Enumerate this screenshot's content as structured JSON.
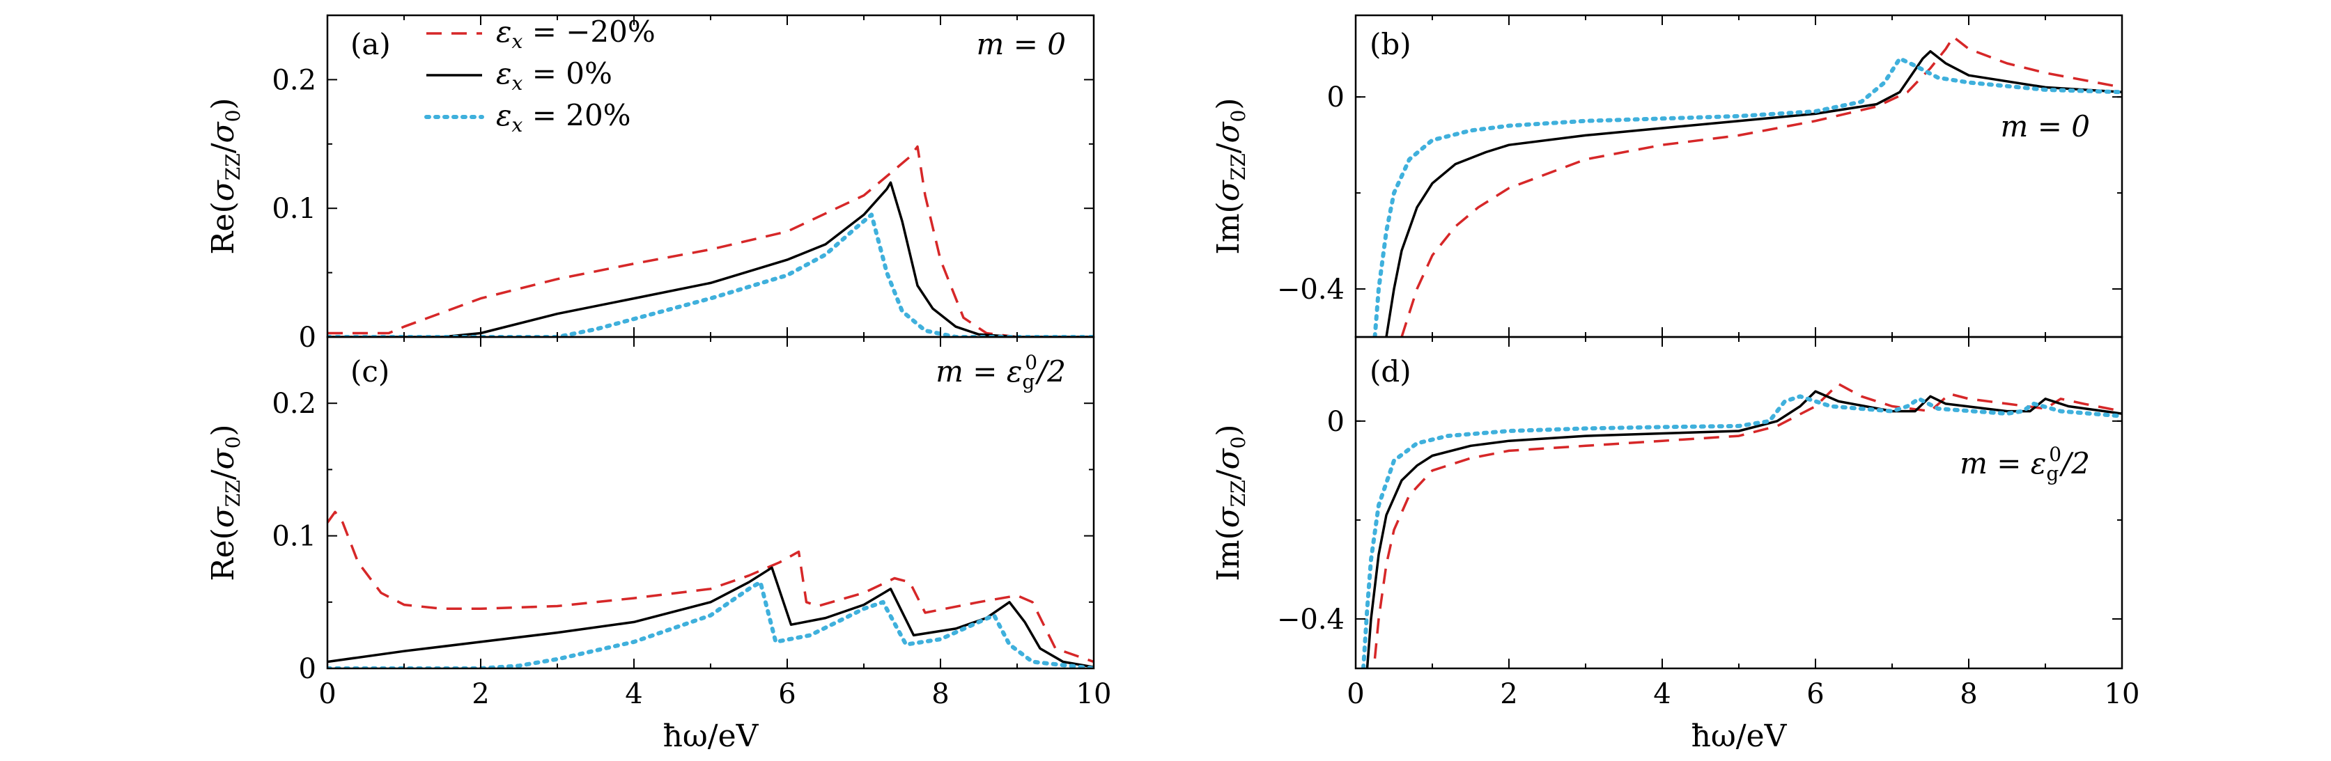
{
  "styles": {
    "dashed": {
      "color": "#d62728",
      "dash": "22,14",
      "width": 3.5
    },
    "solid": {
      "color": "#000000",
      "dash": "",
      "width": 3.5
    },
    "dotted": {
      "color": "#3fb0dc",
      "dash": "4,9",
      "width": 6
    }
  },
  "legend": [
    {
      "label": "εx = −20%",
      "style": "dashed"
    },
    {
      "label": "εx = 0%",
      "style": "solid"
    },
    {
      "label": "εx = 20%",
      "style": "dotted"
    }
  ],
  "xlabel": "ħω/eV",
  "chart_data": [
    {
      "id": "a",
      "type": "line",
      "panel_label": "(a)",
      "annotation": "m = 0",
      "ylabel": "Re(σZZ/σ0)",
      "xlim": [
        0,
        10
      ],
      "ylim": [
        0,
        0.25
      ],
      "xticks": [
        0,
        2,
        4,
        6,
        8,
        10
      ],
      "yticks": [
        0,
        0.1,
        0.2
      ],
      "ytick_labels": [
        "0",
        "0.1",
        "0.2"
      ],
      "series": [
        {
          "name": "εx = −20%",
          "style": "dashed",
          "x": [
            0,
            0.8,
            1.0,
            2,
            3,
            4,
            5,
            6,
            7,
            7.4,
            7.6,
            7.7,
            7.8,
            8.0,
            8.3,
            8.6,
            9.0,
            10
          ],
          "y": [
            0.003,
            0.003,
            0.008,
            0.03,
            0.045,
            0.057,
            0.068,
            0.082,
            0.11,
            0.13,
            0.14,
            0.148,
            0.11,
            0.06,
            0.015,
            0.003,
            0,
            0
          ]
        },
        {
          "name": "εx = 0%",
          "style": "solid",
          "x": [
            0,
            1.5,
            2,
            3,
            4,
            5,
            6,
            6.5,
            7,
            7.3,
            7.35,
            7.5,
            7.7,
            7.9,
            8.2,
            8.5,
            9,
            10
          ],
          "y": [
            0,
            0,
            0.003,
            0.018,
            0.03,
            0.042,
            0.06,
            0.072,
            0.095,
            0.115,
            0.12,
            0.09,
            0.04,
            0.022,
            0.008,
            0.002,
            0,
            0
          ]
        },
        {
          "name": "εx = 20%",
          "style": "dotted",
          "x": [
            0,
            3,
            3.5,
            4,
            5,
            6,
            6.5,
            6.9,
            7.1,
            7.3,
            7.5,
            7.8,
            8.2,
            10
          ],
          "y": [
            0,
            0,
            0.006,
            0.014,
            0.03,
            0.048,
            0.064,
            0.085,
            0.095,
            0.05,
            0.02,
            0.005,
            0,
            0
          ]
        }
      ]
    },
    {
      "id": "b",
      "type": "line",
      "panel_label": "(b)",
      "annotation": "m = 0",
      "ylabel": "Im(σZZ/σ0)",
      "xlim": [
        0,
        10
      ],
      "ylim": [
        -0.5,
        0.17
      ],
      "xticks": [
        0,
        2,
        4,
        6,
        8,
        10
      ],
      "yticks": [
        -0.4,
        0
      ],
      "ytick_labels": [
        "−0.4",
        "0"
      ],
      "series": [
        {
          "name": "εx = −20%",
          "style": "dashed",
          "x": [
            0.6,
            0.8,
            1.0,
            1.3,
            1.6,
            2,
            3,
            4,
            5,
            6,
            6.8,
            7.2,
            7.5,
            7.7,
            7.8,
            8.0,
            8.5,
            9,
            10
          ],
          "y": [
            -0.5,
            -0.4,
            -0.33,
            -0.27,
            -0.23,
            -0.19,
            -0.13,
            -0.1,
            -0.08,
            -0.05,
            -0.02,
            0.01,
            0.06,
            0.1,
            0.125,
            0.1,
            0.07,
            0.05,
            0.02
          ]
        },
        {
          "name": "εx = 0%",
          "style": "solid",
          "x": [
            0.4,
            0.5,
            0.6,
            0.8,
            1.0,
            1.3,
            1.7,
            2,
            3,
            4,
            5,
            6,
            6.8,
            7.1,
            7.4,
            7.5,
            7.7,
            8,
            9,
            10
          ],
          "y": [
            -0.5,
            -0.4,
            -0.32,
            -0.23,
            -0.18,
            -0.14,
            -0.115,
            -0.1,
            -0.08,
            -0.065,
            -0.05,
            -0.035,
            -0.015,
            0.01,
            0.08,
            0.095,
            0.07,
            0.045,
            0.02,
            0.01
          ]
        },
        {
          "name": "εx = 20%",
          "style": "dotted",
          "x": [
            0.25,
            0.3,
            0.4,
            0.5,
            0.7,
            1.0,
            1.5,
            2,
            3,
            4,
            5,
            6,
            6.6,
            6.9,
            7.1,
            7.3,
            7.6,
            8,
            9,
            10
          ],
          "y": [
            -0.5,
            -0.4,
            -0.28,
            -0.2,
            -0.13,
            -0.09,
            -0.07,
            -0.06,
            -0.05,
            -0.045,
            -0.04,
            -0.03,
            -0.01,
            0.03,
            0.08,
            0.065,
            0.04,
            0.03,
            0.015,
            0.01
          ]
        }
      ]
    },
    {
      "id": "c",
      "type": "line",
      "panel_label": "(c)",
      "annotation": "m = εg0/2",
      "ylabel": "Re(σZZ/σ0)",
      "xlim": [
        0,
        10
      ],
      "ylim": [
        0,
        0.25
      ],
      "xticks": [
        0,
        2,
        4,
        6,
        8,
        10
      ],
      "yticks": [
        0,
        0.1,
        0.2
      ],
      "ytick_labels": [
        "0",
        "0.1",
        "0.2"
      ],
      "series": [
        {
          "name": "εx = −20%",
          "style": "dashed",
          "x": [
            0,
            0.1,
            0.2,
            0.4,
            0.7,
            1.0,
            1.5,
            2,
            3,
            4,
            5,
            5.5,
            5.9,
            6.15,
            6.25,
            6.4,
            7.0,
            7.4,
            7.6,
            7.8,
            8.5,
            9.0,
            9.2,
            9.5,
            10
          ],
          "y": [
            0.11,
            0.118,
            0.11,
            0.08,
            0.057,
            0.048,
            0.045,
            0.045,
            0.047,
            0.053,
            0.06,
            0.07,
            0.08,
            0.088,
            0.05,
            0.047,
            0.057,
            0.068,
            0.065,
            0.042,
            0.05,
            0.055,
            0.05,
            0.015,
            0.005
          ]
        },
        {
          "name": "εx = 0%",
          "style": "solid",
          "x": [
            0,
            1,
            2,
            3,
            4,
            5,
            5.5,
            5.8,
            6.05,
            6.5,
            7.0,
            7.35,
            7.65,
            8.2,
            8.6,
            8.9,
            9.1,
            9.3,
            9.6,
            10
          ],
          "y": [
            0.005,
            0.013,
            0.02,
            0.027,
            0.035,
            0.05,
            0.065,
            0.076,
            0.033,
            0.038,
            0.048,
            0.06,
            0.025,
            0.03,
            0.038,
            0.05,
            0.035,
            0.015,
            0.005,
            0.001
          ]
        },
        {
          "name": "εx = 20%",
          "style": "dotted",
          "x": [
            0,
            1,
            2,
            2.5,
            3,
            4,
            5,
            5.5,
            5.65,
            5.85,
            6.3,
            7.0,
            7.25,
            7.55,
            8.0,
            8.5,
            8.7,
            8.9,
            9.2,
            10
          ],
          "y": [
            0,
            0,
            0,
            0.002,
            0.007,
            0.02,
            0.04,
            0.06,
            0.065,
            0.02,
            0.025,
            0.045,
            0.05,
            0.018,
            0.022,
            0.035,
            0.04,
            0.018,
            0.005,
            0
          ]
        }
      ]
    },
    {
      "id": "d",
      "type": "line",
      "panel_label": "(d)",
      "annotation": "m = εg0/2",
      "ylabel": "Im(σZZ/σ0)",
      "xlim": [
        0,
        10
      ],
      "ylim": [
        -0.5,
        0.17
      ],
      "xticks": [
        0,
        2,
        4,
        6,
        8,
        10
      ],
      "yticks": [
        -0.4,
        0
      ],
      "ytick_labels": [
        "−0.4",
        "0"
      ],
      "series": [
        {
          "name": "εx = −20%",
          "style": "dashed",
          "x": [
            0.25,
            0.3,
            0.4,
            0.5,
            0.7,
            1.0,
            1.5,
            2,
            3,
            4,
            5,
            5.5,
            6.0,
            6.3,
            6.6,
            7.0,
            7.5,
            7.75,
            8.0,
            8.5,
            9.0,
            9.2,
            9.5,
            10
          ],
          "y": [
            -0.48,
            -0.4,
            -0.29,
            -0.22,
            -0.15,
            -0.1,
            -0.075,
            -0.06,
            -0.05,
            -0.04,
            -0.03,
            -0.01,
            0.03,
            0.075,
            0.05,
            0.03,
            0.02,
            0.055,
            0.045,
            0.035,
            0.025,
            0.045,
            0.035,
            0.02
          ]
        },
        {
          "name": "εx = 0%",
          "style": "solid",
          "x": [
            0.15,
            0.2,
            0.3,
            0.4,
            0.6,
            0.8,
            1.0,
            1.5,
            2,
            3,
            4,
            5,
            5.5,
            5.8,
            6.0,
            6.3,
            7.0,
            7.3,
            7.5,
            7.7,
            8.5,
            8.8,
            9.0,
            9.3,
            10
          ],
          "y": [
            -0.5,
            -0.4,
            -0.27,
            -0.19,
            -0.12,
            -0.09,
            -0.07,
            -0.05,
            -0.04,
            -0.03,
            -0.025,
            -0.02,
            0,
            0.03,
            0.06,
            0.04,
            0.02,
            0.02,
            0.05,
            0.035,
            0.02,
            0.02,
            0.045,
            0.03,
            0.015
          ]
        },
        {
          "name": "εx = 20%",
          "style": "dotted",
          "x": [
            0.1,
            0.15,
            0.2,
            0.3,
            0.5,
            0.8,
            1.2,
            2,
            3,
            4,
            5,
            5.4,
            5.6,
            5.8,
            6.2,
            7.0,
            7.2,
            7.35,
            7.6,
            8.5,
            8.7,
            8.85,
            9.2,
            10
          ],
          "y": [
            -0.5,
            -0.38,
            -0.28,
            -0.17,
            -0.08,
            -0.045,
            -0.03,
            -0.02,
            -0.015,
            -0.012,
            -0.01,
            0,
            0.04,
            0.05,
            0.03,
            0.02,
            0.03,
            0.045,
            0.025,
            0.015,
            0.02,
            0.035,
            0.02,
            0.01
          ]
        }
      ]
    }
  ]
}
